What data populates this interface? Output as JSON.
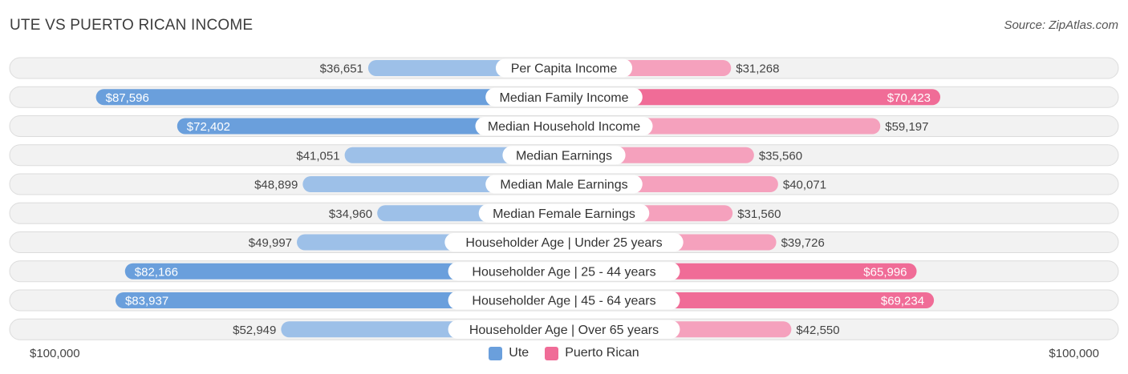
{
  "header": {
    "title": "UTE VS PUERTO RICAN INCOME",
    "source": "Source: ZipAtlas.com"
  },
  "chart_data": {
    "type": "bar",
    "orientation": "horizontal-diverging",
    "title": "UTE VS PUERTO RICAN INCOME",
    "categories": [
      "Per Capita Income",
      "Median Family Income",
      "Median Household Income",
      "Median Earnings",
      "Median Male Earnings",
      "Median Female Earnings",
      "Householder Age | Under 25 years",
      "Householder Age | 25 - 44 years",
      "Householder Age | 45 - 64 years",
      "Householder Age | Over 65 years"
    ],
    "series": [
      {
        "name": "Ute",
        "color": "#6a9fdc",
        "color_light": "#9dc0e8",
        "values": [
          36651,
          87596,
          72402,
          41051,
          48899,
          34960,
          49997,
          82166,
          83937,
          52949
        ],
        "labels": [
          "$36,651",
          "$87,596",
          "$72,402",
          "$41,051",
          "$48,899",
          "$34,960",
          "$49,997",
          "$82,166",
          "$83,937",
          "$52,949"
        ]
      },
      {
        "name": "Puerto Rican",
        "color": "#f06c97",
        "color_light": "#f5a1bd",
        "values": [
          31268,
          70423,
          59197,
          35560,
          40071,
          31560,
          39726,
          65996,
          69234,
          42550
        ],
        "labels": [
          "$31,268",
          "$70,423",
          "$59,197",
          "$35,560",
          "$40,071",
          "$31,560",
          "$39,726",
          "$65,996",
          "$69,234",
          "$42,550"
        ]
      }
    ],
    "xlim": [
      0,
      100000
    ],
    "axis_labels": {
      "left": "$100,000",
      "right": "$100,000"
    },
    "legend_position": "bottom-center",
    "inside_label_threshold": 60000
  }
}
